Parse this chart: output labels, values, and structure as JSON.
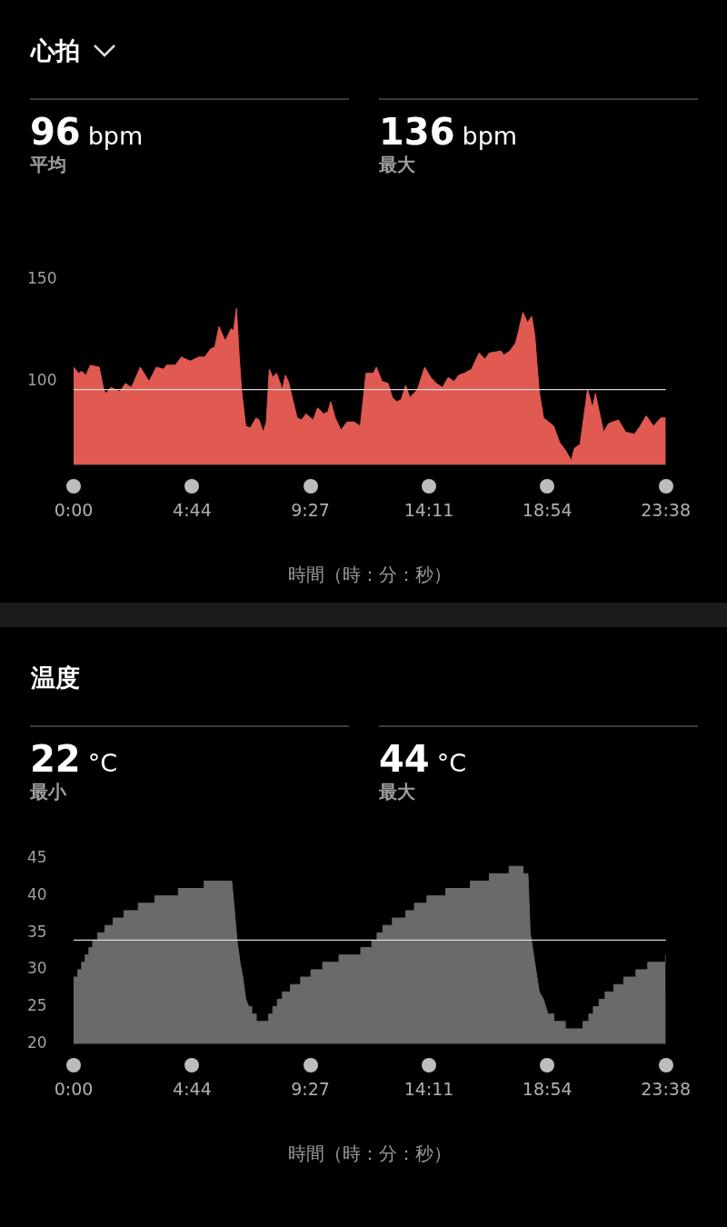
{
  "chart_data": [
    {
      "type": "area",
      "title": "心拍",
      "annotations": [
        "96 bpm",
        "平均",
        "136 bpm",
        "最大"
      ],
      "xlabel": "時間（時：分：秒）",
      "x": [
        0,
        0.2,
        0.32,
        0.49,
        0.67,
        1.02,
        1.2,
        1.29,
        1.49,
        1.84,
        2.07,
        2.31,
        2.66,
        3.01,
        3.3,
        3.59,
        3.71,
        4.06,
        4.3,
        4.65,
        5.0,
        5.23,
        5.47,
        5.64,
        5.8,
        6.05,
        6.29,
        6.38,
        6.5,
        6.61,
        6.7,
        6.81,
        6.87,
        7.05,
        7.28,
        7.4,
        7.57,
        7.69,
        7.81,
        7.95,
        8.1,
        8.33,
        8.45,
        8.57,
        8.92,
        9.1,
        9.27,
        9.56,
        9.74,
        9.97,
        10.15,
        10.26,
        10.44,
        10.67,
        10.91,
        11.2,
        11.44,
        11.67,
        11.96,
        12.08,
        12.31,
        12.55,
        12.72,
        12.9,
        13.07,
        13.25,
        13.42,
        13.72,
        14.01,
        14.25,
        14.48,
        14.72,
        14.95,
        15.18,
        15.36,
        15.59,
        15.88,
        16.18,
        16.41,
        16.59,
        17.05,
        17.17,
        17.41,
        17.64,
        17.76,
        17.93,
        18.11,
        18.28,
        18.4,
        18.58,
        18.75,
        19.16,
        19.39,
        19.63,
        19.86,
        19.98,
        20.21,
        20.51,
        20.71,
        20.82,
        21.15,
        21.33,
        21.5,
        21.74,
        22.03,
        22.38,
        22.61,
        22.85,
        23.14,
        23.43,
        23.63
      ],
      "series": [
        {
          "color": "#e05a52",
          "values": [
            107,
            104,
            105,
            103,
            108,
            107,
            96,
            94,
            97,
            95,
            99,
            97,
            107,
            100,
            107,
            106,
            108,
            108,
            112,
            110,
            112,
            112,
            116,
            117,
            127,
            120,
            126,
            125,
            136,
            112,
            96,
            84,
            78,
            77,
            82,
            81,
            75,
            80,
            106,
            102,
            104,
            96,
            103,
            100,
            82,
            81,
            84,
            81,
            87,
            84,
            85,
            90,
            82,
            76,
            80,
            80,
            78,
            104,
            104,
            107,
            100,
            99,
            92,
            90,
            91,
            98,
            92,
            96,
            107,
            102,
            99,
            97,
            102,
            100,
            103,
            104,
            106,
            114,
            111,
            114,
            115,
            113,
            115,
            119,
            125,
            134,
            129,
            132,
            123,
            95,
            82,
            78,
            70,
            66,
            61,
            67,
            69,
            96,
            87,
            94,
            75,
            79,
            80,
            81,
            75,
            74,
            78,
            83,
            78,
            82,
            82
          ]
        }
      ],
      "xlim": [
        0,
        23.63
      ],
      "xticks": [
        {
          "value": 0,
          "label": "0:00"
        },
        {
          "value": 4.73,
          "label": "4:44"
        },
        {
          "value": 9.45,
          "label": "9:27"
        },
        {
          "value": 14.18,
          "label": "14:11"
        },
        {
          "value": 18.9,
          "label": "18:54"
        },
        {
          "value": 23.63,
          "label": "23:38"
        }
      ],
      "ylim": [
        59,
        150
      ],
      "yticks": [
        100,
        150
      ],
      "marker": "none",
      "ref_lines": [
        {
          "axis": "y",
          "value": 96
        }
      ]
    },
    {
      "type": "area",
      "title": "温度",
      "annotations": [
        "22 °C",
        "最小",
        "44 °C",
        "最大"
      ],
      "xlabel": "時間（時：分：秒）",
      "x": [
        0,
        0.17,
        0.17,
        0.32,
        0.32,
        0.46,
        0.46,
        0.61,
        0.61,
        0.76,
        0.76,
        0.96,
        0.96,
        1.25,
        1.25,
        1.58,
        1.58,
        2.01,
        2.01,
        2.58,
        2.58,
        3.24,
        3.24,
        4.18,
        4.18,
        5.21,
        5.21,
        6.31,
        6.42,
        6.52,
        6.64,
        6.75,
        6.87,
        6.99,
        7.1,
        7.1,
        7.28,
        7.28,
        7.78,
        7.78,
        7.95,
        7.95,
        8.13,
        8.13,
        8.33,
        8.33,
        8.65,
        8.65,
        9.06,
        9.06,
        9.47,
        9.47,
        9.94,
        9.94,
        10.59,
        10.59,
        11.46,
        11.46,
        11.9,
        11.9,
        12.11,
        12.11,
        12.34,
        12.34,
        12.72,
        12.72,
        13.25,
        13.25,
        13.6,
        13.6,
        14.1,
        14.1,
        14.85,
        14.85,
        15.83,
        15.83,
        16.59,
        16.59,
        17.38,
        17.38,
        17.93,
        17.93,
        18.13,
        18.22,
        18.4,
        18.58,
        18.75,
        18.93,
        19.16,
        19.16,
        19.61,
        19.61,
        20.33,
        20.33,
        20.56,
        20.56,
        20.74,
        20.74,
        20.97,
        20.97,
        21.21,
        21.21,
        21.56,
        21.56,
        21.95,
        21.95,
        22.44,
        22.44,
        22.91,
        22.91,
        23.61,
        23.61,
        23.63
      ],
      "series": [
        {
          "color": "#6a6a6a",
          "values": [
            29,
            29,
            30,
            30,
            31,
            31,
            32,
            32,
            33,
            33,
            34,
            34,
            35,
            35,
            36,
            36,
            37,
            37,
            38,
            38,
            39,
            39,
            40,
            40,
            41,
            41,
            42,
            42,
            38,
            34,
            31,
            29,
            26,
            25,
            25,
            24,
            24,
            23,
            23,
            24,
            24,
            25,
            25,
            26,
            26,
            27,
            27,
            28,
            28,
            29,
            29,
            30,
            30,
            31,
            31,
            32,
            32,
            33,
            33,
            34,
            34,
            35,
            35,
            36,
            36,
            37,
            37,
            38,
            38,
            39,
            39,
            40,
            40,
            41,
            41,
            42,
            42,
            43,
            43,
            44,
            44,
            43,
            43,
            35,
            31,
            27,
            26,
            24,
            24,
            23,
            23,
            22,
            22,
            23,
            23,
            24,
            24,
            25,
            25,
            26,
            26,
            27,
            27,
            28,
            28,
            29,
            29,
            30,
            30,
            31,
            31,
            32,
            32
          ]
        }
      ],
      "xlim": [
        0,
        23.63
      ],
      "xticks": [
        {
          "value": 0,
          "label": "0:00"
        },
        {
          "value": 4.73,
          "label": "4:44"
        },
        {
          "value": 9.45,
          "label": "9:27"
        },
        {
          "value": 14.18,
          "label": "14:11"
        },
        {
          "value": 18.9,
          "label": "18:54"
        },
        {
          "value": 23.63,
          "label": "23:38"
        }
      ],
      "ylim": [
        20,
        45
      ],
      "yticks": [
        20,
        25,
        30,
        35,
        40,
        45
      ],
      "marker": "none",
      "ref_lines": [
        {
          "axis": "y",
          "value": 34
        }
      ]
    }
  ]
}
